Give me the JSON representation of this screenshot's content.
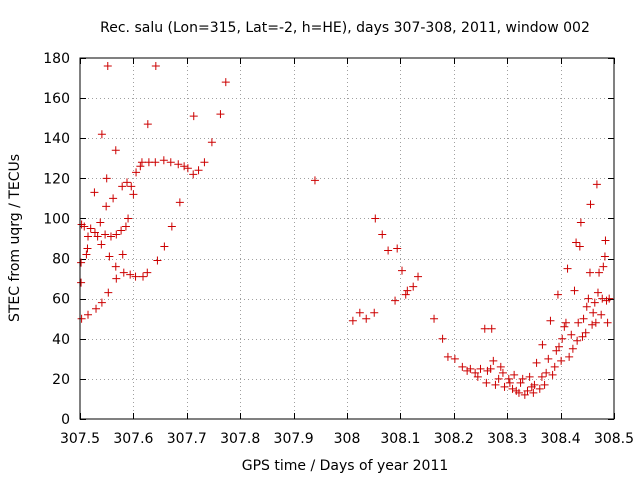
{
  "chart_data": {
    "type": "scatter",
    "title": "Rec. salu (Lon=315, Lat=-2, h=HE), days 307-308, 2011, window 002",
    "xlabel": "GPS time / Days of year 2011",
    "ylabel": "STEC from uqrg / TECUs",
    "xlim": [
      307.5,
      308.5
    ],
    "ylim": [
      0,
      180
    ],
    "xticks": [
      307.5,
      307.6,
      307.7,
      307.8,
      307.9,
      308,
      308.1,
      308.2,
      308.3,
      308.4,
      308.5
    ],
    "xtick_labels": [
      "307.5",
      "307.6",
      "307.7",
      "307.8",
      "307.9",
      "308",
      "308.1",
      "308.2",
      "308.3",
      "308.4",
      "308.5"
    ],
    "yticks": [
      0,
      20,
      40,
      60,
      80,
      100,
      120,
      140,
      160,
      180
    ],
    "ytick_labels": [
      "0",
      "20",
      "40",
      "60",
      "80",
      "100",
      "120",
      "140",
      "160",
      "180"
    ],
    "grid": true,
    "marker": "+",
    "marker_color": "#cc0000",
    "points": [
      [
        307.502,
        68
      ],
      [
        307.502,
        78
      ],
      [
        307.503,
        97
      ],
      [
        307.503,
        50
      ],
      [
        307.508,
        96
      ],
      [
        307.512,
        82
      ],
      [
        307.514,
        85
      ],
      [
        307.515,
        91
      ],
      [
        307.515,
        52
      ],
      [
        307.52,
        95
      ],
      [
        307.527,
        113
      ],
      [
        307.528,
        93
      ],
      [
        307.53,
        55
      ],
      [
        307.533,
        91
      ],
      [
        307.538,
        98
      ],
      [
        307.54,
        87
      ],
      [
        307.541,
        142
      ],
      [
        307.541,
        58
      ],
      [
        307.547,
        92
      ],
      [
        307.549,
        106
      ],
      [
        307.55,
        120
      ],
      [
        307.552,
        176
      ],
      [
        307.553,
        63
      ],
      [
        307.555,
        81
      ],
      [
        307.558,
        91
      ],
      [
        307.562,
        110
      ],
      [
        307.567,
        134
      ],
      [
        307.567,
        76
      ],
      [
        307.568,
        92
      ],
      [
        307.568,
        70
      ],
      [
        307.577,
        94
      ],
      [
        307.579,
        116
      ],
      [
        307.58,
        82
      ],
      [
        307.582,
        73
      ],
      [
        307.586,
        96
      ],
      [
        307.588,
        118
      ],
      [
        307.59,
        100
      ],
      [
        307.594,
        72
      ],
      [
        307.596,
        116
      ],
      [
        307.6,
        112
      ],
      [
        307.604,
        71
      ],
      [
        307.605,
        123
      ],
      [
        307.613,
        126
      ],
      [
        307.616,
        128
      ],
      [
        307.618,
        71
      ],
      [
        307.626,
        73
      ],
      [
        307.627,
        147
      ],
      [
        307.629,
        128
      ],
      [
        307.641,
        128
      ],
      [
        307.642,
        176
      ],
      [
        307.645,
        79
      ],
      [
        307.657,
        129
      ],
      [
        307.658,
        86
      ],
      [
        307.67,
        128
      ],
      [
        307.672,
        96
      ],
      [
        307.684,
        127
      ],
      [
        307.687,
        108
      ],
      [
        307.695,
        126
      ],
      [
        307.702,
        125
      ],
      [
        307.712,
        122
      ],
      [
        307.713,
        151
      ],
      [
        307.722,
        124
      ],
      [
        307.733,
        128
      ],
      [
        307.747,
        138
      ],
      [
        307.763,
        152
      ],
      [
        307.773,
        168
      ],
      [
        307.94,
        119
      ],
      [
        308.011,
        49
      ],
      [
        308.024,
        53
      ],
      [
        308.036,
        50
      ],
      [
        308.051,
        53
      ],
      [
        308.053,
        100
      ],
      [
        308.066,
        92
      ],
      [
        308.077,
        84
      ],
      [
        308.09,
        59
      ],
      [
        308.094,
        85
      ],
      [
        308.103,
        74
      ],
      [
        308.11,
        62
      ],
      [
        308.113,
        64
      ],
      [
        308.124,
        66
      ],
      [
        308.133,
        71
      ],
      [
        308.163,
        50
      ],
      [
        308.179,
        40
      ],
      [
        308.189,
        31
      ],
      [
        308.202,
        30
      ],
      [
        308.216,
        26
      ],
      [
        308.225,
        24
      ],
      [
        308.231,
        25
      ],
      [
        308.24,
        23
      ],
      [
        308.245,
        21
      ],
      [
        308.25,
        25
      ],
      [
        308.258,
        45
      ],
      [
        308.261,
        18
      ],
      [
        308.263,
        24
      ],
      [
        308.269,
        25
      ],
      [
        308.271,
        45
      ],
      [
        308.274,
        29
      ],
      [
        308.278,
        17
      ],
      [
        308.284,
        20
      ],
      [
        308.288,
        26
      ],
      [
        308.292,
        23
      ],
      [
        308.295,
        16
      ],
      [
        308.303,
        20
      ],
      [
        308.305,
        18
      ],
      [
        308.31,
        15
      ],
      [
        308.313,
        22
      ],
      [
        308.317,
        14
      ],
      [
        308.322,
        13
      ],
      [
        308.325,
        18
      ],
      [
        308.329,
        20
      ],
      [
        308.333,
        12
      ],
      [
        308.338,
        14
      ],
      [
        308.342,
        21
      ],
      [
        308.346,
        16
      ],
      [
        308.349,
        13
      ],
      [
        308.351,
        17
      ],
      [
        308.355,
        28
      ],
      [
        308.361,
        15
      ],
      [
        308.365,
        21
      ],
      [
        308.366,
        37
      ],
      [
        308.37,
        17
      ],
      [
        308.373,
        23
      ],
      [
        308.377,
        30
      ],
      [
        308.381,
        49
      ],
      [
        308.385,
        22
      ],
      [
        308.389,
        26
      ],
      [
        308.392,
        34
      ],
      [
        308.395,
        62
      ],
      [
        308.397,
        36
      ],
      [
        308.401,
        29
      ],
      [
        308.403,
        40
      ],
      [
        308.407,
        46
      ],
      [
        308.41,
        48
      ],
      [
        308.413,
        75
      ],
      [
        308.416,
        31
      ],
      [
        308.42,
        42
      ],
      [
        308.423,
        35
      ],
      [
        308.426,
        64
      ],
      [
        308.429,
        88
      ],
      [
        308.431,
        39
      ],
      [
        308.433,
        48
      ],
      [
        308.436,
        86
      ],
      [
        308.438,
        98
      ],
      [
        308.441,
        41
      ],
      [
        308.443,
        50
      ],
      [
        308.447,
        43
      ],
      [
        308.449,
        56
      ],
      [
        308.452,
        60
      ],
      [
        308.455,
        73
      ],
      [
        308.456,
        107
      ],
      [
        308.459,
        47
      ],
      [
        308.461,
        53
      ],
      [
        308.464,
        58
      ],
      [
        308.466,
        48
      ],
      [
        308.468,
        117
      ],
      [
        308.47,
        63
      ],
      [
        308.472,
        73
      ],
      [
        308.476,
        52
      ],
      [
        308.478,
        60
      ],
      [
        308.48,
        76
      ],
      [
        308.483,
        81
      ],
      [
        308.484,
        89
      ],
      [
        308.486,
        59
      ],
      [
        308.488,
        48
      ],
      [
        308.491,
        60
      ]
    ]
  }
}
